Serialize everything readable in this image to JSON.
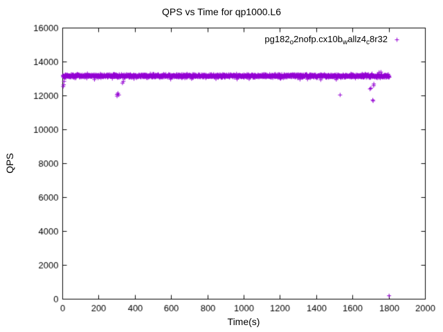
{
  "header": {
    "title": "QPS vs Time for qp1000.L6"
  },
  "chart_data": {
    "type": "scatter",
    "title": "QPS vs Time for qp1000.L6",
    "xlabel": "Time(s)",
    "ylabel": "QPS",
    "xlim": [
      0,
      2000
    ],
    "ylim": [
      0,
      16000
    ],
    "xticks": [
      0,
      200,
      400,
      600,
      800,
      1000,
      1200,
      1400,
      1600,
      1800,
      2000
    ],
    "yticks": [
      0,
      2000,
      4000,
      6000,
      8000,
      10000,
      12000,
      14000,
      16000
    ],
    "grid": false,
    "legend_position": "top-right-inside",
    "marker": "plus",
    "marker_color": "#9400d3",
    "legend_label_plain": "pg182_o2nofp.cx10b_wallz4_c8r32",
    "legend_label_display": "pg182o2nofp.cx10bwallz4c8r32",
    "legend_segments": [
      {
        "text": "pg182",
        "sub": false
      },
      {
        "text": "o",
        "sub": true
      },
      {
        "text": "2nofp.cx10b",
        "sub": false
      },
      {
        "text": "w",
        "sub": true
      },
      {
        "text": "allz4",
        "sub": false
      },
      {
        "text": "c",
        "sub": true
      },
      {
        "text": "8r32",
        "sub": false
      }
    ],
    "series": [
      {
        "name": "pg182_o2nofp.cx10b_wallz4_c8r32",
        "band": {
          "x_start": 2,
          "x_end": 1800,
          "n_points": 1700,
          "y_center": 13170,
          "y_jitter": 165,
          "dip_chance": 0.015,
          "seed": 42
        },
        "outliers": [
          [
            3,
            12550
          ],
          [
            6,
            12650
          ],
          [
            8,
            12850
          ],
          [
            300,
            11980
          ],
          [
            300,
            12080
          ],
          [
            305,
            12150
          ],
          [
            310,
            12050
          ],
          [
            330,
            12750
          ],
          [
            335,
            12850
          ],
          [
            1530,
            12050
          ],
          [
            1695,
            12400
          ],
          [
            1700,
            12450
          ],
          [
            1710,
            11750
          ],
          [
            1712,
            11700
          ],
          [
            1715,
            12600
          ],
          [
            1716,
            12700
          ],
          [
            1745,
            13380
          ],
          [
            1755,
            13400
          ],
          [
            1800,
            200
          ],
          [
            1802,
            13100
          ]
        ]
      }
    ]
  }
}
